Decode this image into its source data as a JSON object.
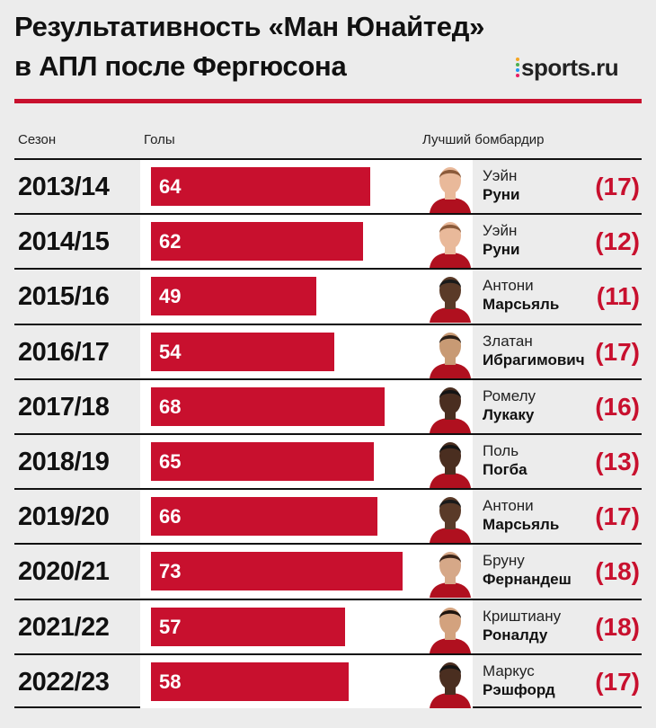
{
  "title": {
    "line1": "Результативность «Ман Юнайтед»",
    "line2": "в АПЛ после Фергюсона"
  },
  "logo": {
    "text": "sports.ru",
    "dot_colors": [
      "#f5a623",
      "#4caf50",
      "#2196f3",
      "#e91e63"
    ]
  },
  "headers": {
    "season": "Сезон",
    "goals": "Голы",
    "scorer": "Лучший бомбардир"
  },
  "colors": {
    "accent": "#c8102e",
    "background": "#ececec"
  },
  "chart_data": {
    "type": "bar",
    "orientation": "horizontal",
    "title": "Результативность «Ман Юнайтед» в АПЛ после Фергюсона",
    "categories": [
      "2013/14",
      "2014/15",
      "2015/16",
      "2016/17",
      "2017/18",
      "2018/19",
      "2019/20",
      "2020/21",
      "2021/22",
      "2022/23"
    ],
    "values": [
      64,
      62,
      49,
      54,
      68,
      65,
      66,
      73,
      57,
      58
    ],
    "xlim": [
      0,
      80
    ],
    "top_scorers": [
      {
        "first": "Уэйн",
        "last": "Руни",
        "goals": "(17)",
        "skin": "#e9b99a",
        "hair": "#8a5a3a"
      },
      {
        "first": "Уэйн",
        "last": "Руни",
        "goals": "(12)",
        "skin": "#e9b99a",
        "hair": "#8a5a3a"
      },
      {
        "first": "Антони",
        "last": "Марсьяль",
        "goals": "(11)",
        "skin": "#5a3a28",
        "hair": "#1a1a1a"
      },
      {
        "first": "Златан",
        "last": "Ибрагимович",
        "goals": "(17)",
        "skin": "#c89a74",
        "hair": "#2a1e16"
      },
      {
        "first": "Ромелу",
        "last": "Лукаку",
        "goals": "(16)",
        "skin": "#4a2e20",
        "hair": "#141414"
      },
      {
        "first": "Поль",
        "last": "Погба",
        "goals": "(13)",
        "skin": "#4a2e20",
        "hair": "#141414"
      },
      {
        "first": "Антони",
        "last": "Марсьяль",
        "goals": "(17)",
        "skin": "#5a3a28",
        "hair": "#1a1a1a"
      },
      {
        "first": "Бруну",
        "last": "Фернандеш",
        "goals": "(18)",
        "skin": "#d6a888",
        "hair": "#3a2418"
      },
      {
        "first": "Криштиану",
        "last": "Роналду",
        "goals": "(18)",
        "skin": "#d3a27e",
        "hair": "#1e140e"
      },
      {
        "first": "Маркус",
        "last": "Рэшфорд",
        "goals": "(17)",
        "skin": "#4a2e20",
        "hair": "#141414"
      }
    ]
  }
}
